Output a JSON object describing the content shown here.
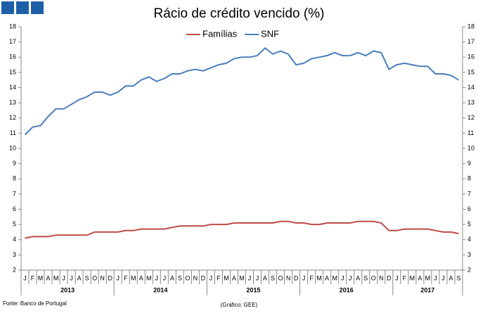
{
  "chart_data": {
    "type": "line",
    "title": "Rácio de crédito vencido (%)",
    "categories": [
      "J",
      "F",
      "M",
      "A",
      "M",
      "J",
      "J",
      "A",
      "S",
      "O",
      "N",
      "D",
      "J",
      "F",
      "M",
      "A",
      "M",
      "J",
      "J",
      "A",
      "S",
      "O",
      "N",
      "D",
      "J",
      "F",
      "M",
      "A",
      "M",
      "J",
      "J",
      "A",
      "S",
      "O",
      "N",
      "D",
      "J",
      "F",
      "M",
      "A",
      "M",
      "J",
      "J",
      "A",
      "S",
      "O",
      "N",
      "D",
      "J",
      "F",
      "M",
      "A",
      "M",
      "J",
      "J",
      "A",
      "S"
    ],
    "year_labels": [
      "2013",
      "2014",
      "2015",
      "2016",
      "2017"
    ],
    "series": [
      {
        "name": "Famílias",
        "color": "#be4b48",
        "values": [
          4.1,
          4.2,
          4.2,
          4.2,
          4.3,
          4.3,
          4.3,
          4.3,
          4.3,
          4.5,
          4.5,
          4.5,
          4.5,
          4.6,
          4.6,
          4.7,
          4.7,
          4.7,
          4.7,
          4.8,
          4.9,
          4.9,
          4.9,
          4.9,
          5.0,
          5.0,
          5.0,
          5.1,
          5.1,
          5.1,
          5.1,
          5.1,
          5.1,
          5.2,
          5.2,
          5.1,
          5.1,
          5.0,
          5.0,
          5.1,
          5.1,
          5.1,
          5.1,
          5.2,
          5.2,
          5.2,
          5.1,
          4.6,
          4.6,
          4.7,
          4.7,
          4.7,
          4.7,
          4.6,
          4.5,
          4.5,
          4.4
        ]
      },
      {
        "name": "SNF",
        "color": "#4a7ebb",
        "values": [
          10.9,
          11.4,
          11.5,
          12.1,
          12.6,
          12.6,
          12.9,
          13.2,
          13.4,
          13.7,
          13.7,
          13.5,
          13.7,
          14.1,
          14.1,
          14.5,
          14.7,
          14.4,
          14.6,
          14.9,
          14.9,
          15.1,
          15.2,
          15.1,
          15.3,
          15.5,
          15.6,
          15.9,
          16.0,
          16.0,
          16.1,
          16.6,
          16.2,
          16.4,
          16.2,
          15.5,
          15.6,
          15.9,
          16.0,
          16.1,
          16.3,
          16.1,
          16.1,
          16.3,
          16.1,
          16.4,
          16.3,
          15.2,
          15.5,
          15.6,
          15.5,
          15.4,
          15.4,
          14.9,
          14.9,
          14.8,
          14.5
        ]
      }
    ],
    "ylim": [
      2,
      18
    ],
    "yticks": [
      2,
      3,
      4,
      5,
      6,
      7,
      8,
      9,
      10,
      11,
      12,
      13,
      14,
      15,
      16,
      17,
      18
    ],
    "y2lim": [
      2,
      18
    ],
    "y2ticks": [
      2,
      3,
      4,
      5,
      6,
      7,
      8,
      9,
      10,
      11,
      12,
      13,
      14,
      15,
      16,
      17,
      18
    ],
    "legend": "top",
    "source": "Fonte: Banco de Portugal",
    "credit": "(Gráfico: GEE)"
  }
}
